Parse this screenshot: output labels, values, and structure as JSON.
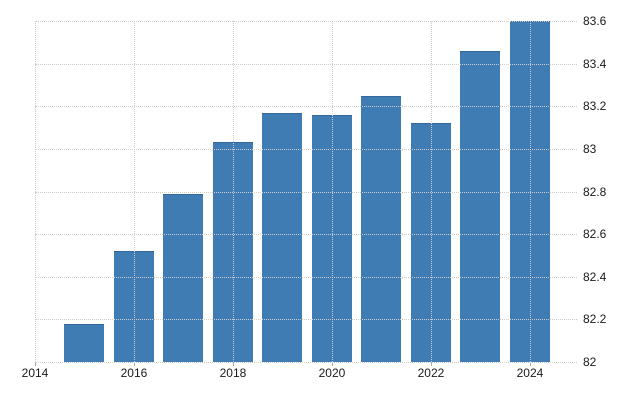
{
  "chart_data": {
    "type": "bar",
    "title": "",
    "xlabel": "",
    "ylabel": "",
    "categories": [
      2015,
      2016,
      2017,
      2018,
      2019,
      2020,
      2021,
      2022,
      2023,
      2024
    ],
    "values": [
      82.18,
      82.52,
      82.79,
      83.03,
      83.17,
      83.16,
      83.25,
      83.12,
      83.46,
      83.6
    ],
    "ylim": [
      82,
      83.6
    ],
    "xlim": [
      2014,
      2024.95
    ],
    "y_ticks": [
      82,
      82.2,
      82.4,
      82.6,
      82.8,
      83,
      83.2,
      83.4,
      83.6
    ],
    "y_tick_labels": [
      "82",
      "82.2",
      "82.4",
      "82.6",
      "82.8",
      "83",
      "83.2",
      "83.4",
      "83.6"
    ],
    "x_ticks": [
      2014,
      2016,
      2018,
      2020,
      2022,
      2024
    ],
    "x_tick_labels": [
      "2014",
      "2016",
      "2018",
      "2020",
      "2022",
      "2024"
    ],
    "grid": "dotted",
    "legend_position": "none",
    "colors": {
      "bar": "#407cb4",
      "bar_top_edge": "#35689a",
      "gridline": "#cccccc",
      "tick_mark": "#aaaaaa",
      "tick_label": "#1a1a1a",
      "background": "#ffffff"
    }
  }
}
